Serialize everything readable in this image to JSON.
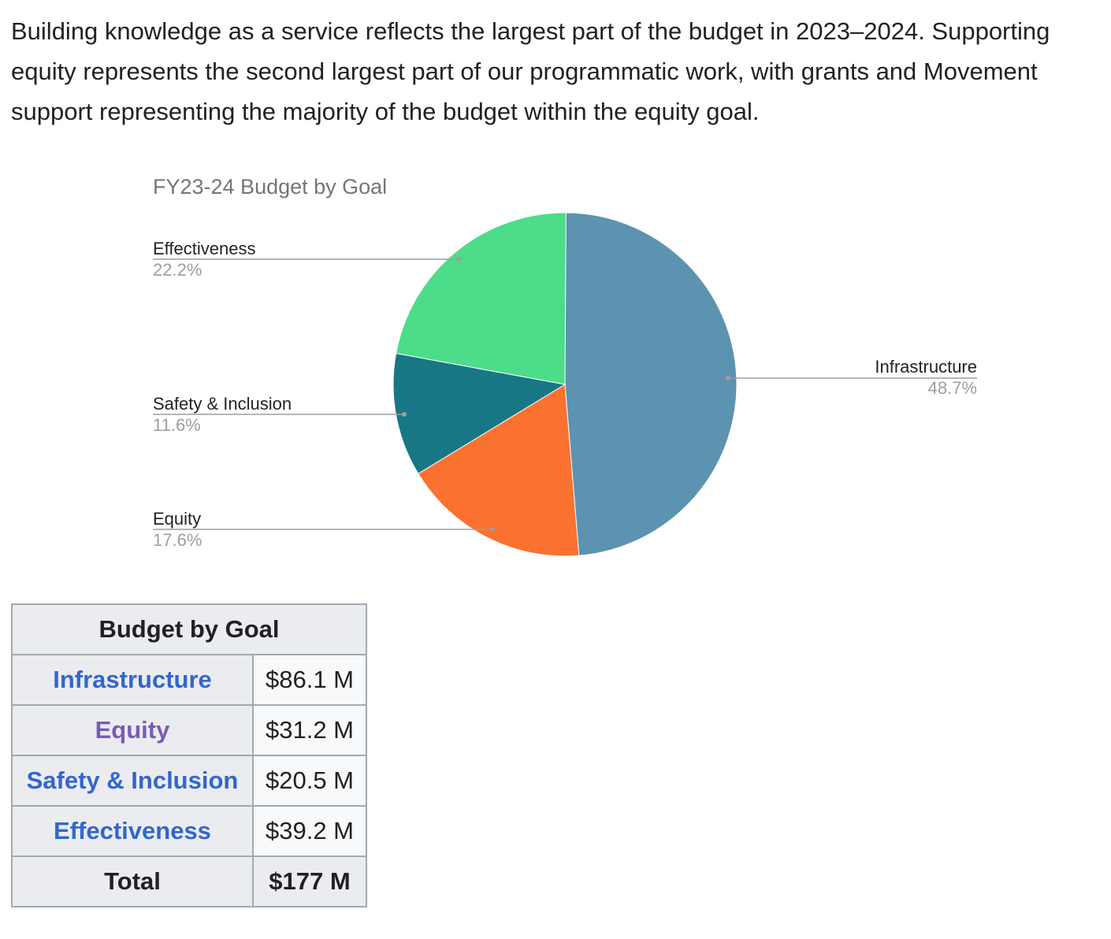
{
  "intro": "Building knowledge as a service reflects the largest part of the budget in 2023–2024. Supporting equity represents the second largest part of our programmatic work, with grants and Movement support representing the majority of the budget within the equity goal.",
  "chart_data": {
    "type": "pie",
    "title": "FY23-24 Budget by Goal",
    "start_angle_deg": 0,
    "direction": "clockwise",
    "slices": [
      {
        "label": "Infrastructure",
        "percent": 48.7,
        "pct_text": "48.7%",
        "color": "#5b93b0"
      },
      {
        "label": "Equity",
        "percent": 17.6,
        "pct_text": "17.6%",
        "color": "#fb7130"
      },
      {
        "label": "Safety & Inclusion",
        "percent": 11.6,
        "pct_text": "11.6%",
        "color": "#187785"
      },
      {
        "label": "Effectiveness",
        "percent": 22.2,
        "pct_text": "22.2%",
        "color": "#4ddc8a"
      }
    ]
  },
  "table": {
    "caption": "Budget by Goal",
    "rows": [
      {
        "goal": "Infrastructure",
        "value": "$86.1 M",
        "link_color": "#3366cc"
      },
      {
        "goal": "Equity",
        "value": "$31.2 M",
        "link_color": "#795cb2"
      },
      {
        "goal": "Safety & Inclusion",
        "value": "$20.5 M",
        "link_color": "#3366cc"
      },
      {
        "goal": "Effectiveness",
        "value": "$39.2 M",
        "link_color": "#3366cc"
      }
    ],
    "total_label": "Total",
    "total_value": "$177 M"
  }
}
